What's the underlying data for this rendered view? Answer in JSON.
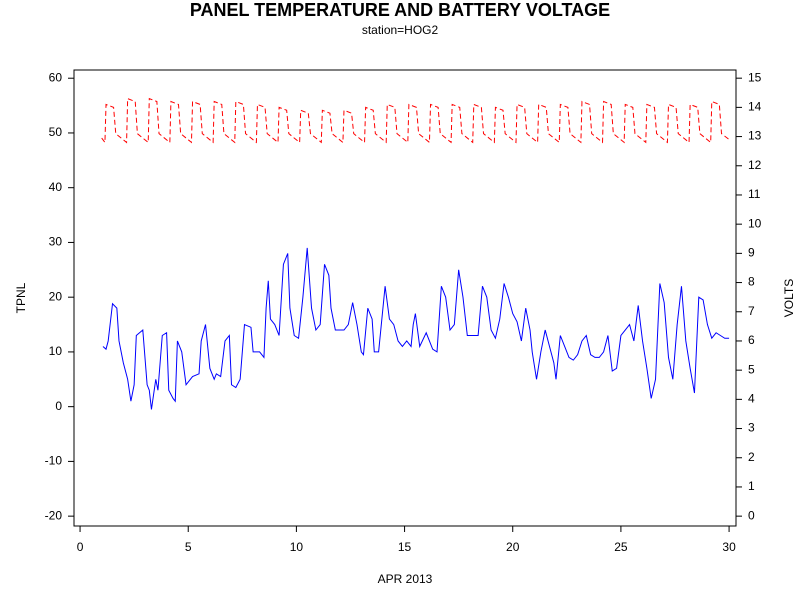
{
  "chart_data": {
    "type": "line",
    "title": "PANEL TEMPERATURE AND BATTERY VOLTAGE",
    "subtitle": "station=HOG2",
    "x_label": "APR 2013",
    "y_label": "TPNL",
    "y2_label": "VOLTS",
    "xlim": [
      -0.28,
      30.32
    ],
    "xticks": [
      0,
      5,
      10,
      15,
      20,
      25,
      30
    ],
    "ylim": [
      -21.8,
      61.5
    ],
    "yticks": [
      -20,
      -10,
      0,
      10,
      20,
      30,
      40,
      50,
      60
    ],
    "y2lim": [
      -0.3375,
      15.28
    ],
    "y2ticks": [
      0,
      1,
      2,
      3,
      4,
      5,
      6,
      7,
      8,
      9,
      10,
      11,
      12,
      13,
      14,
      15
    ],
    "grid": false,
    "series": [
      {
        "color": "#0000ff",
        "style": "solid",
        "axis": "y",
        "x": [
          1.06,
          1.2,
          1.3,
          1.5,
          1.7,
          1.8,
          2.0,
          2.2,
          2.35,
          2.5,
          2.6,
          2.9,
          3.1,
          3.2,
          3.3,
          3.5,
          3.6,
          3.8,
          4.0,
          4.1,
          4.3,
          4.4,
          4.5,
          4.7,
          4.9,
          5.2,
          5.5,
          5.6,
          5.8,
          6.0,
          6.2,
          6.3,
          6.5,
          6.7,
          6.9,
          7.0,
          7.2,
          7.4,
          7.6,
          7.9,
          8.0,
          8.3,
          8.5,
          8.6,
          8.7,
          8.8,
          9.0,
          9.2,
          9.4,
          9.6,
          9.7,
          9.9,
          10.1,
          10.3,
          10.5,
          10.7,
          10.9,
          11.1,
          11.3,
          11.5,
          11.6,
          11.8,
          12.2,
          12.4,
          12.6,
          12.8,
          13.0,
          13.1,
          13.3,
          13.5,
          13.6,
          13.8,
          14.1,
          14.3,
          14.5,
          14.7,
          14.9,
          15.1,
          15.3,
          15.4,
          15.5,
          15.7,
          16.0,
          16.3,
          16.5,
          16.7,
          16.9,
          17.1,
          17.3,
          17.5,
          17.7,
          17.9,
          18.2,
          18.4,
          18.6,
          18.8,
          19.0,
          19.2,
          19.4,
          19.6,
          19.8,
          20.0,
          20.2,
          20.4,
          20.6,
          20.8,
          20.9,
          21.1,
          21.3,
          21.5,
          21.7,
          21.9,
          22.0,
          22.2,
          22.4,
          22.6,
          22.8,
          23.0,
          23.2,
          23.4,
          23.6,
          23.8,
          24.0,
          24.2,
          24.4,
          24.6,
          24.8,
          25.0,
          25.2,
          25.4,
          25.6,
          25.8,
          26.0,
          26.2,
          26.4,
          26.6,
          26.8,
          27.0,
          27.2,
          27.4,
          27.6,
          27.8,
          28.0,
          28.2,
          28.4,
          28.6,
          28.8,
          29.0,
          29.2,
          29.4,
          29.6,
          29.8,
          30.0
        ],
        "values": [
          11,
          10.5,
          12,
          18.8,
          18,
          12,
          8,
          5,
          1,
          4,
          13,
          14,
          4,
          3,
          -0.5,
          5,
          3,
          13,
          13.5,
          3,
          1.5,
          1,
          12,
          10,
          4,
          5.5,
          6,
          12,
          15,
          7,
          5,
          6,
          5.5,
          12,
          13,
          4,
          3.5,
          5,
          15,
          14.5,
          10,
          10,
          9,
          18,
          23,
          16,
          15,
          13,
          26,
          28,
          18,
          13,
          12.5,
          20,
          29,
          18,
          14,
          15,
          26,
          24,
          18,
          14,
          14,
          15,
          19,
          15,
          10,
          9.5,
          18,
          16,
          10,
          10,
          22,
          16,
          15,
          12,
          11,
          12,
          11,
          15,
          17,
          11,
          13.5,
          10.5,
          10,
          22,
          20,
          14,
          15,
          25,
          20,
          13,
          13,
          13,
          22,
          20,
          14,
          12.5,
          16,
          22.5,
          20,
          17,
          15.5,
          12,
          18,
          14,
          10,
          5,
          10,
          14,
          11,
          8,
          5,
          13,
          11,
          9,
          8.5,
          9.5,
          12,
          13,
          9.5,
          9,
          9,
          10,
          13,
          6.5,
          7,
          13,
          14,
          15,
          12,
          18.5,
          12,
          7,
          1.5,
          5,
          22.5,
          19,
          9,
          5,
          15,
          22,
          12,
          7,
          2.5,
          20,
          19.5,
          15,
          12.5,
          13.5,
          13,
          12.5,
          12.5
        ]
      },
      {
        "color": "#ff0000",
        "style": "dashed",
        "axis": "y2",
        "x": [
          1.0,
          1.15,
          1.2,
          1.55,
          1.65,
          2.15,
          2.2,
          2.55,
          2.65,
          3.15,
          3.2,
          3.55,
          3.65,
          4.15,
          4.2,
          4.55,
          4.65,
          5.15,
          5.2,
          5.55,
          5.65,
          6.15,
          6.2,
          6.55,
          6.65,
          7.15,
          7.2,
          7.55,
          7.65,
          8.15,
          8.2,
          8.55,
          8.65,
          9.15,
          9.2,
          9.55,
          9.65,
          10.15,
          10.2,
          10.55,
          10.65,
          11.15,
          11.2,
          11.55,
          11.65,
          12.15,
          12.2,
          12.55,
          12.65,
          13.15,
          13.2,
          13.55,
          13.65,
          14.15,
          14.2,
          14.55,
          14.65,
          15.15,
          15.2,
          15.55,
          15.65,
          16.15,
          16.2,
          16.55,
          16.65,
          17.15,
          17.2,
          17.55,
          17.65,
          18.15,
          18.2,
          18.55,
          18.65,
          19.15,
          19.2,
          19.55,
          19.65,
          20.15,
          20.2,
          20.55,
          20.65,
          21.15,
          21.2,
          21.55,
          21.65,
          22.15,
          22.2,
          22.55,
          22.65,
          23.15,
          23.2,
          23.55,
          23.65,
          24.15,
          24.2,
          24.55,
          24.65,
          25.15,
          25.2,
          25.55,
          25.65,
          26.15,
          26.2,
          26.55,
          26.65,
          27.15,
          27.2,
          27.55,
          27.65,
          28.15,
          28.2,
          28.55,
          28.65,
          29.15,
          29.2,
          29.55,
          29.65,
          30.0
        ],
        "values": [
          12.95,
          12.8,
          14.1,
          14.0,
          13.1,
          12.8,
          14.3,
          14.2,
          13.1,
          12.8,
          14.3,
          14.2,
          13.1,
          12.8,
          14.2,
          14.1,
          13.1,
          12.8,
          14.2,
          14.1,
          13.1,
          12.8,
          14.2,
          14.1,
          13.1,
          12.8,
          14.2,
          14.1,
          13.1,
          12.8,
          14.1,
          14.0,
          13.1,
          12.8,
          14.0,
          13.9,
          13.1,
          12.8,
          13.9,
          13.8,
          13.1,
          12.8,
          13.9,
          13.8,
          13.1,
          12.8,
          13.9,
          13.8,
          13.1,
          12.8,
          14.0,
          13.9,
          13.1,
          12.8,
          14.1,
          14.0,
          13.1,
          12.8,
          14.1,
          14.0,
          13.1,
          12.8,
          14.1,
          14.0,
          13.1,
          12.8,
          14.1,
          14.0,
          13.1,
          12.8,
          14.1,
          14.0,
          13.1,
          12.8,
          14.0,
          13.9,
          13.1,
          12.8,
          14.1,
          14.0,
          13.1,
          12.8,
          14.1,
          14.0,
          13.1,
          12.8,
          14.1,
          14.0,
          13.1,
          12.8,
          14.2,
          14.1,
          13.1,
          12.8,
          14.2,
          14.1,
          13.1,
          12.8,
          14.1,
          14.0,
          13.1,
          12.8,
          14.1,
          14.0,
          13.1,
          12.8,
          14.1,
          14.0,
          13.1,
          12.8,
          14.1,
          14.0,
          13.1,
          12.8,
          14.2,
          14.1,
          13.1,
          12.9
        ]
      }
    ]
  }
}
